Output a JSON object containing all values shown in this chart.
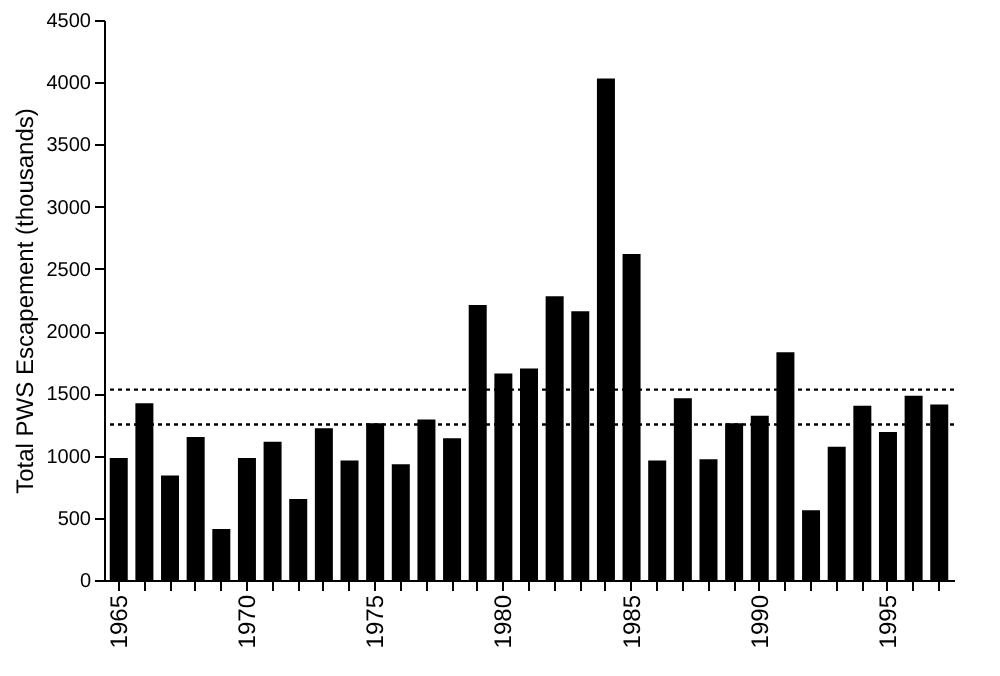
{
  "chart_data": {
    "type": "bar",
    "ylabel": "Total PWS Escapement (thousands)",
    "categories": [
      "1965",
      null,
      null,
      null,
      null,
      "1970",
      null,
      null,
      null,
      null,
      "1975",
      null,
      null,
      null,
      null,
      "1980",
      null,
      null,
      null,
      null,
      "1985",
      null,
      null,
      null,
      null,
      "1990",
      null,
      null,
      null,
      null,
      "1995",
      null,
      null
    ],
    "values": [
      980,
      1420,
      840,
      1150,
      410,
      980,
      1110,
      650,
      1220,
      960,
      1260,
      930,
      1290,
      1140,
      2210,
      1660,
      1700,
      2280,
      2160,
      4030,
      2620,
      960,
      1460,
      970,
      1260,
      1320,
      1830,
      560,
      1070,
      1400,
      1190,
      1480,
      1410
    ],
    "color": "#000000",
    "ylim": [
      0,
      4500
    ],
    "yticks": [
      0,
      500,
      1000,
      1500,
      2000,
      2500,
      3000,
      3500,
      4000,
      4500
    ],
    "grid": false,
    "ref_lines": [
      {
        "axis": "y",
        "value": 1530,
        "label": null,
        "line_style": "dotted",
        "color": "#000000"
      },
      {
        "axis": "y",
        "value": 1250,
        "label": null,
        "line_style": "dotted",
        "color": "#000000"
      }
    ]
  }
}
